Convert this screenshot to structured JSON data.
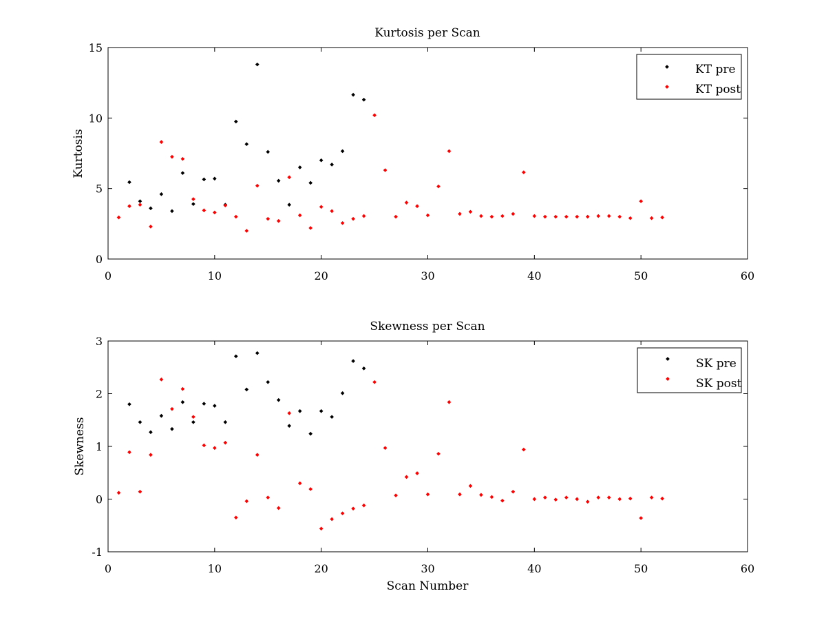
{
  "chart_data": [
    {
      "type": "scatter",
      "title": "Kurtosis per Scan",
      "xlabel": "",
      "ylabel": "Kurtosis",
      "xlim": [
        0,
        60
      ],
      "ylim": [
        0,
        15
      ],
      "xticks": [
        0,
        10,
        20,
        30,
        40,
        50,
        60
      ],
      "yticks": [
        0,
        5,
        10,
        15
      ],
      "grid": false,
      "legend_position": "top-right",
      "series": [
        {
          "name": "KT pre",
          "color": "#000000",
          "x": [
            2,
            3,
            4,
            5,
            6,
            7,
            8,
            9,
            10,
            11,
            12,
            13,
            14,
            15,
            16,
            17,
            18,
            19,
            20,
            21,
            22,
            23,
            24
          ],
          "y": [
            5.45,
            4.1,
            3.6,
            4.6,
            3.4,
            6.1,
            3.9,
            5.65,
            5.7,
            3.85,
            9.75,
            8.15,
            13.8,
            7.6,
            5.55,
            3.85,
            6.5,
            5.4,
            7.0,
            6.7,
            7.65,
            11.65,
            11.3
          ]
        },
        {
          "name": "KT post",
          "color": "#ff0000",
          "x": [
            1,
            2,
            3,
            4,
            5,
            6,
            7,
            8,
            9,
            10,
            11,
            12,
            13,
            14,
            15,
            16,
            17,
            18,
            19,
            20,
            21,
            22,
            23,
            24,
            25,
            26,
            27,
            28,
            29,
            30,
            31,
            32,
            33,
            34,
            35,
            36,
            37,
            38,
            39,
            40,
            41,
            42,
            43,
            44,
            45,
            46,
            47,
            48,
            49,
            50,
            51,
            52
          ],
          "y": [
            2.95,
            3.75,
            3.85,
            2.3,
            8.3,
            7.25,
            7.1,
            4.25,
            3.45,
            3.3,
            3.8,
            3.0,
            2.0,
            5.2,
            2.85,
            2.7,
            5.8,
            3.1,
            2.2,
            3.7,
            3.4,
            2.55,
            2.85,
            3.05,
            10.2,
            6.3,
            3.0,
            4.0,
            3.75,
            3.1,
            5.15,
            7.65,
            3.2,
            3.35,
            3.05,
            3.0,
            3.05,
            3.2,
            6.15,
            3.05,
            3.0,
            3.0,
            3.0,
            3.0,
            3.0,
            3.05,
            3.05,
            3.0,
            2.9,
            4.1,
            2.9,
            2.95
          ]
        }
      ]
    },
    {
      "type": "scatter",
      "title": "Skewness per Scan",
      "xlabel": "Scan Number",
      "ylabel": "Skewness",
      "xlim": [
        0,
        60
      ],
      "ylim": [
        -1,
        3
      ],
      "xticks": [
        0,
        10,
        20,
        30,
        40,
        50,
        60
      ],
      "yticks": [
        -1,
        0,
        1,
        2,
        3
      ],
      "grid": false,
      "legend_position": "top-right",
      "series": [
        {
          "name": "SK pre",
          "color": "#000000",
          "x": [
            2,
            3,
            4,
            5,
            6,
            7,
            8,
            9,
            10,
            11,
            12,
            13,
            14,
            15,
            16,
            17,
            18,
            19,
            20,
            21,
            22,
            23,
            24
          ],
          "y": [
            1.8,
            1.46,
            1.27,
            1.58,
            1.33,
            1.84,
            1.46,
            1.81,
            1.77,
            1.46,
            2.71,
            2.08,
            2.77,
            2.22,
            1.88,
            1.39,
            1.67,
            1.24,
            1.67,
            1.56,
            2.01,
            2.62,
            2.48
          ]
        },
        {
          "name": "SK post",
          "color": "#ff0000",
          "x": [
            1,
            2,
            3,
            4,
            5,
            6,
            7,
            8,
            9,
            10,
            11,
            12,
            13,
            14,
            15,
            16,
            17,
            18,
            19,
            20,
            21,
            22,
            23,
            24,
            25,
            26,
            27,
            28,
            29,
            30,
            31,
            32,
            33,
            34,
            35,
            36,
            37,
            38,
            39,
            40,
            41,
            42,
            43,
            44,
            45,
            46,
            47,
            48,
            49,
            50,
            51,
            52
          ],
          "y": [
            0.12,
            0.89,
            0.14,
            0.84,
            2.27,
            1.71,
            2.09,
            1.56,
            1.02,
            0.97,
            1.07,
            -0.35,
            -0.04,
            0.84,
            0.03,
            -0.17,
            1.63,
            0.3,
            0.19,
            -0.56,
            -0.38,
            -0.27,
            -0.18,
            -0.12,
            2.22,
            0.97,
            0.07,
            0.42,
            0.49,
            0.09,
            0.86,
            1.84,
            0.09,
            0.25,
            0.08,
            0.04,
            -0.03,
            0.14,
            0.94,
            0.0,
            0.03,
            -0.01,
            0.03,
            0.0,
            -0.05,
            0.03,
            0.03,
            0.0,
            0.01,
            -0.36,
            0.03,
            0.01
          ]
        }
      ]
    }
  ]
}
